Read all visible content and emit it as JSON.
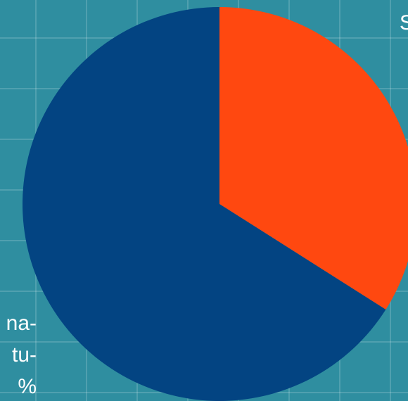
{
  "chart_data": {
    "type": "pie",
    "labels": [
      [
        "S"
      ],
      [
        "na-",
        "tu-",
        "%"
      ]
    ],
    "values": [
      34,
      66
    ],
    "colors": [
      "#ff4810",
      "#034482"
    ]
  }
}
